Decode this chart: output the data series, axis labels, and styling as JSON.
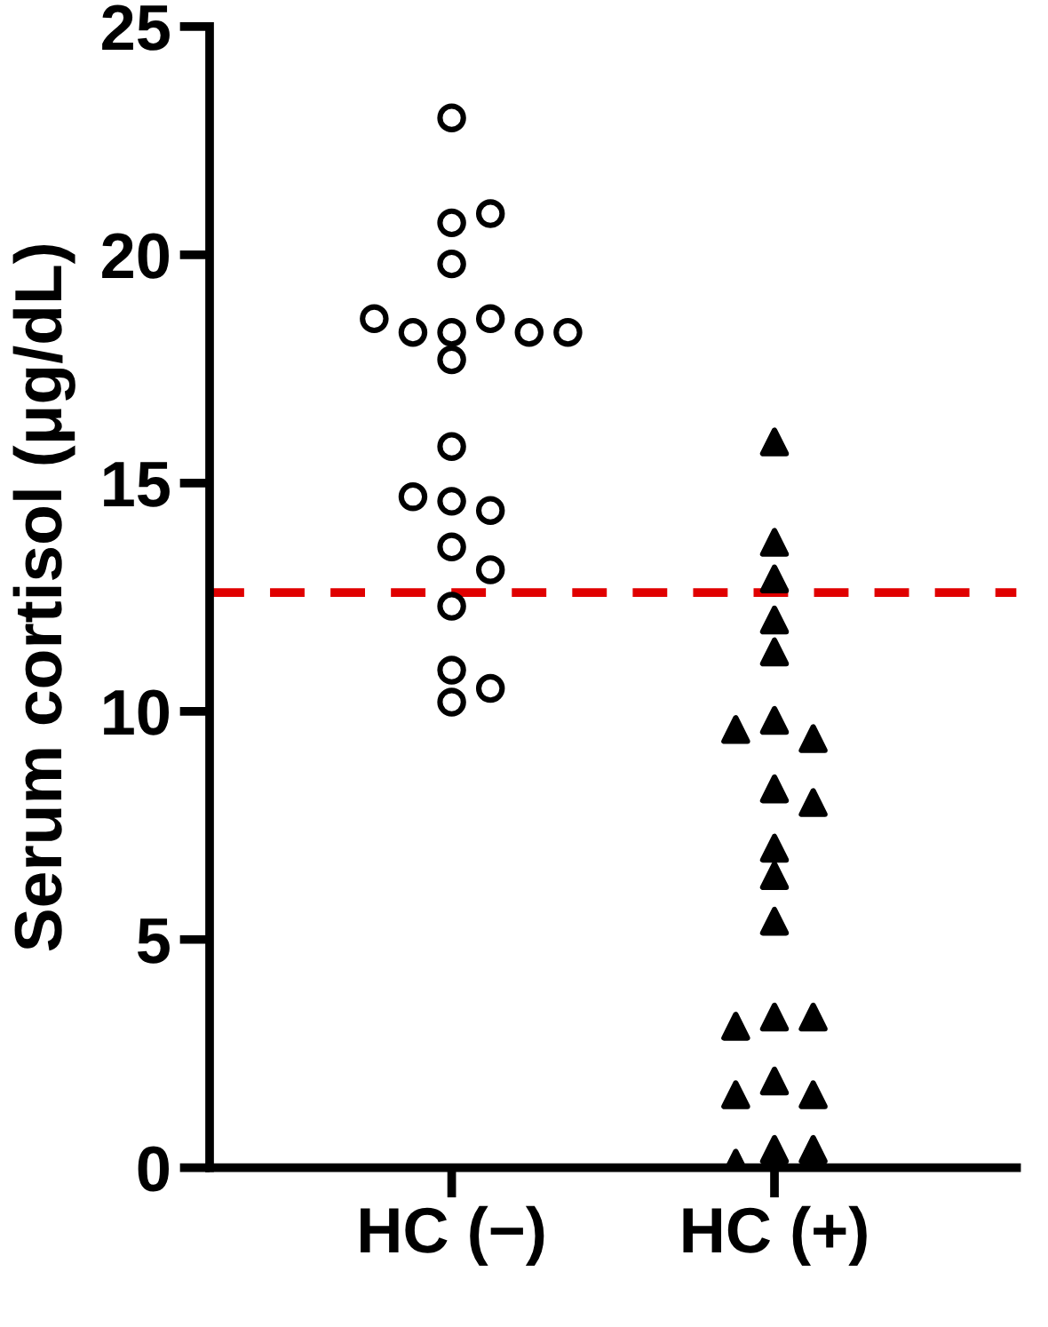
{
  "chart_data": {
    "type": "scatter",
    "ylabel": "Serum cortisol (μg/dL)",
    "categories": [
      "HC (−)",
      "HC (+)"
    ],
    "ylim": [
      0,
      25
    ],
    "yticks": [
      0,
      5,
      10,
      15,
      20,
      25
    ],
    "grid": false,
    "legend": false,
    "series": [
      {
        "color": "#000000",
        "marker": "circle",
        "x": [
          "HC (−)",
          "HC (−)",
          "HC (−)",
          "HC (−)",
          "HC (−)",
          "HC (−)",
          "HC (−)",
          "HC (−)",
          "HC (−)",
          "HC (−)",
          "HC (−)",
          "HC (−)",
          "HC (−)",
          "HC (−)",
          "HC (−)",
          "HC (−)",
          "HC (−)",
          "HC (−)",
          "HC (−)",
          "HC (−)",
          "HC (−)"
        ],
        "values": [
          23.0,
          20.7,
          20.9,
          19.8,
          18.3,
          18.6,
          18.3,
          18.3,
          18.6,
          18.3,
          17.7,
          15.8,
          14.6,
          14.4,
          14.7,
          13.6,
          13.1,
          12.3,
          10.9,
          10.2,
          10.5
        ]
      },
      {
        "color": "#000000",
        "marker": "triangle",
        "x": [
          "HC (+)",
          "HC (+)",
          "HC (+)",
          "HC (+)",
          "HC (+)",
          "HC (+)",
          "HC (+)",
          "HC (+)",
          "HC (+)",
          "HC (+)",
          "HC (+)",
          "HC (+)",
          "HC (+)",
          "HC (+)",
          "HC (+)",
          "HC (+)",
          "HC (+)",
          "HC (+)",
          "HC (+)",
          "HC (+)",
          "HC (+)",
          "HC (+)"
        ],
        "values": [
          15.9,
          13.7,
          12.9,
          12.0,
          11.3,
          9.8,
          9.4,
          9.6,
          8.3,
          8.0,
          7.0,
          6.4,
          5.4,
          3.3,
          3.3,
          3.1,
          1.9,
          1.6,
          1.6,
          0.4,
          0.4,
          0.1
        ]
      }
    ],
    "ref_lines": [
      {
        "axis": "y",
        "value": 12.6,
        "color": "#e00000",
        "line_style": "dashed"
      }
    ]
  }
}
